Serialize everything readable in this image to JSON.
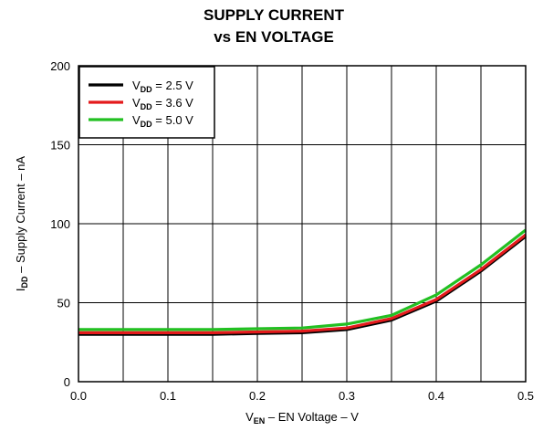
{
  "chart_data": {
    "type": "line",
    "title": [
      "SUPPLY CURRENT",
      "vs EN VOLTAGE"
    ],
    "xlabel": {
      "sym": "V",
      "sub": "EN",
      "rest": " – EN Voltage – V"
    },
    "ylabel": {
      "sym": "I",
      "sub": "DD",
      "rest": " – Supply Current – nA"
    },
    "xlim": [
      0,
      0.5
    ],
    "ylim": [
      0,
      200
    ],
    "x_ticks": [
      "0.0",
      "0.1",
      "0.2",
      "0.3",
      "0.4",
      "0.5"
    ],
    "y_ticks": [
      "0",
      "50",
      "100",
      "150",
      "200"
    ],
    "x_tick_values": [
      0,
      0.1,
      0.2,
      0.3,
      0.4,
      0.5
    ],
    "y_tick_values": [
      0,
      50,
      100,
      150,
      200
    ],
    "x_grid_step": 0.05,
    "y_grid_step": 50,
    "grid": true,
    "legend_position": "top-left",
    "x": [
      0,
      0.05,
      0.1,
      0.15,
      0.2,
      0.25,
      0.3,
      0.35,
      0.4,
      0.45,
      0.5
    ],
    "series": [
      {
        "sym": "V",
        "sub": "DD",
        "rest": " = 2.5 V",
        "color": "#000000",
        "values": [
          30,
          30,
          30,
          30,
          30.5,
          31,
          33,
          39,
          51,
          70,
          92
        ]
      },
      {
        "sym": "V",
        "sub": "DD",
        "rest": " = 3.6 V",
        "color": "#e41a1c",
        "values": [
          31,
          31,
          31,
          31,
          31.5,
          32,
          34,
          40,
          52,
          71,
          93
        ]
      },
      {
        "sym": "V",
        "sub": "DD",
        "rest": " = 5.0 V",
        "color": "#22c022",
        "values": [
          33,
          33,
          33,
          33,
          33.5,
          34,
          36.5,
          42,
          55,
          74,
          96
        ]
      }
    ]
  }
}
